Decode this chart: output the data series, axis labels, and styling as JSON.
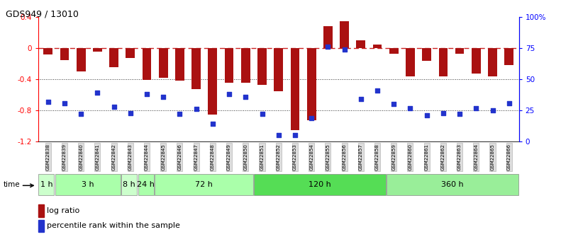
{
  "title": "GDS949 / 13010",
  "samples": [
    "GSM22838",
    "GSM22839",
    "GSM22840",
    "GSM22841",
    "GSM22842",
    "GSM22843",
    "GSM22844",
    "GSM22845",
    "GSM22846",
    "GSM22847",
    "GSM22848",
    "GSM22849",
    "GSM22850",
    "GSM22851",
    "GSM22852",
    "GSM22853",
    "GSM22854",
    "GSM22855",
    "GSM22856",
    "GSM22857",
    "GSM22858",
    "GSM22859",
    "GSM22860",
    "GSM22861",
    "GSM22862",
    "GSM22863",
    "GSM22864",
    "GSM22865",
    "GSM22866"
  ],
  "log_ratio": [
    -0.08,
    -0.15,
    -0.3,
    -0.04,
    -0.24,
    -0.13,
    -0.41,
    -0.38,
    -0.42,
    -0.53,
    -0.85,
    -0.44,
    -0.44,
    -0.47,
    -0.55,
    -1.05,
    -0.93,
    0.28,
    0.35,
    0.1,
    0.05,
    -0.07,
    -0.36,
    -0.16,
    -0.36,
    -0.07,
    -0.33,
    -0.36,
    -0.22
  ],
  "percentile_rank": [
    32,
    31,
    22,
    39,
    28,
    23,
    38,
    36,
    22,
    26,
    14,
    38,
    36,
    22,
    5,
    5,
    19,
    76,
    74,
    34,
    41,
    30,
    27,
    21,
    23,
    22,
    27,
    25,
    31
  ],
  "time_groups": [
    {
      "label": "1 h",
      "start": 0,
      "end": 1,
      "color": "#ccffcc"
    },
    {
      "label": "3 h",
      "start": 1,
      "end": 5,
      "color": "#aaffaa"
    },
    {
      "label": "8 h",
      "start": 5,
      "end": 6,
      "color": "#ccffcc"
    },
    {
      "label": "24 h",
      "start": 6,
      "end": 7,
      "color": "#aaffaa"
    },
    {
      "label": "72 h",
      "start": 7,
      "end": 13,
      "color": "#aaffaa"
    },
    {
      "label": "120 h",
      "start": 13,
      "end": 21,
      "color": "#55dd55"
    },
    {
      "label": "360 h",
      "start": 21,
      "end": 29,
      "color": "#99ee99"
    }
  ],
  "bar_color": "#aa1111",
  "scatter_color": "#2233cc",
  "dashed_line_color": "#cc2222",
  "dotted_line_color": "#333333",
  "ylim_left": [
    -1.2,
    0.4
  ],
  "ylim_right": [
    0,
    100
  ],
  "yticks_left": [
    -1.2,
    -0.8,
    -0.4,
    0.0,
    0.4
  ],
  "ytick_labels_right": [
    "0",
    "25",
    "50",
    "75",
    "100%"
  ],
  "ytick_vals_right": [
    0,
    25,
    50,
    75,
    100
  ],
  "bg_color": "#ffffff",
  "legend_log_ratio": "log ratio",
  "legend_percentile": "percentile rank within the sample"
}
